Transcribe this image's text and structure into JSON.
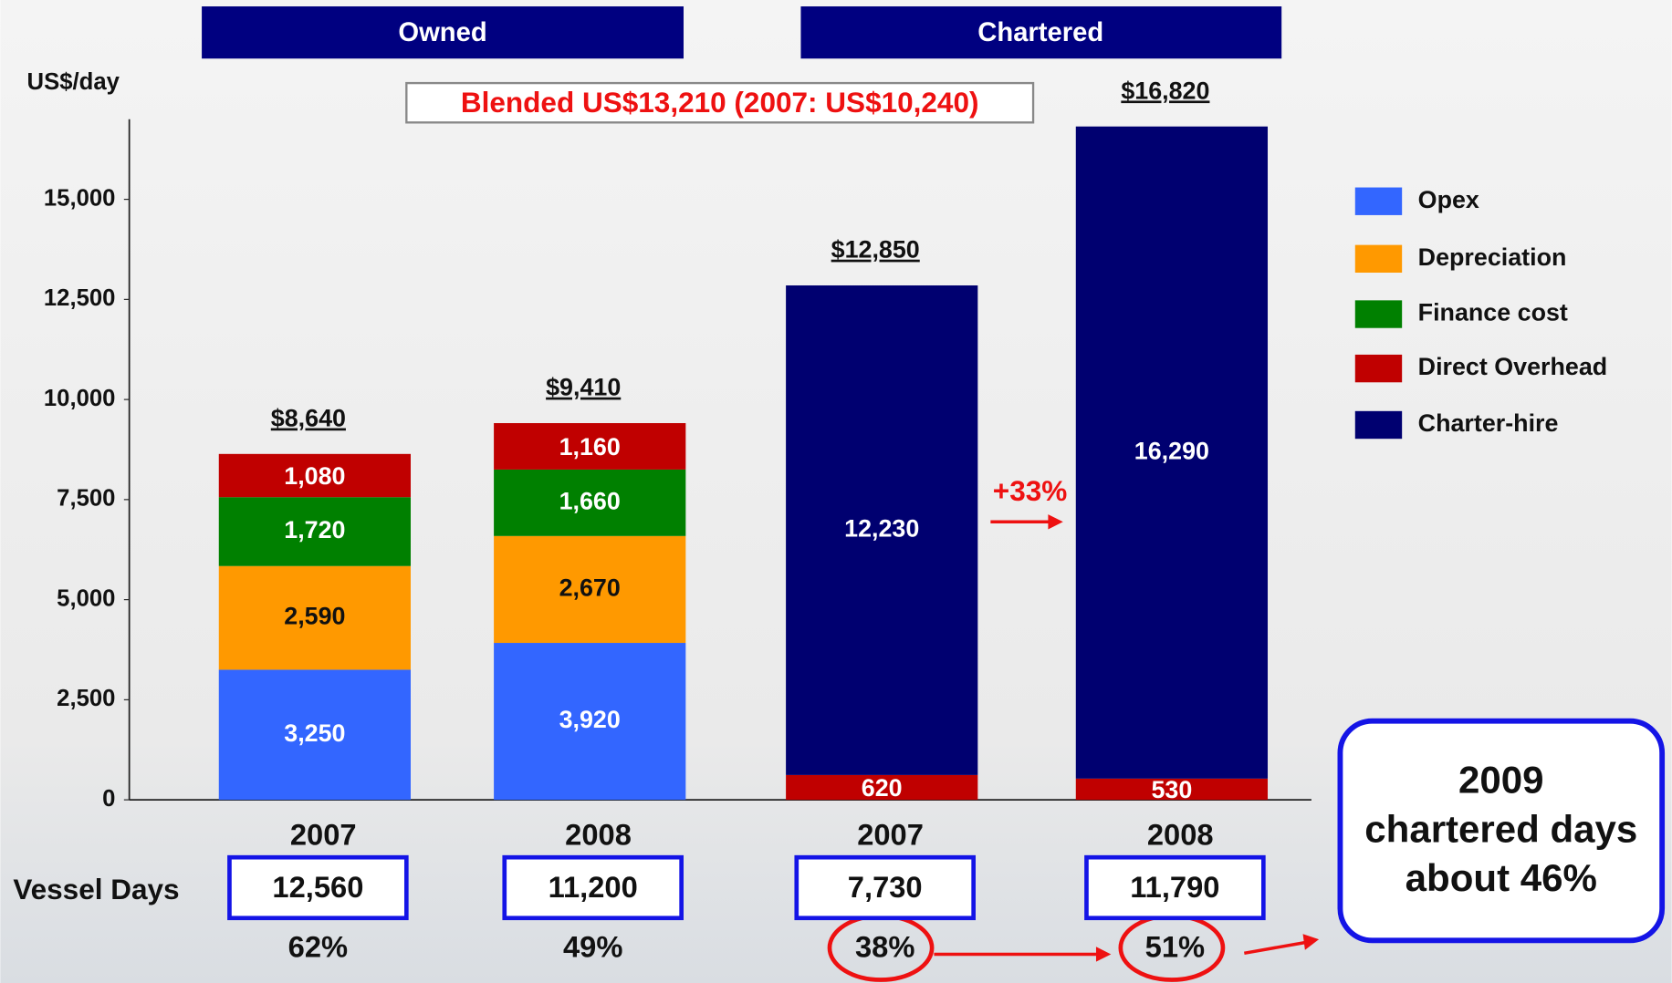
{
  "chart_data": {
    "type": "stacked_bar",
    "groups": [
      "Owned",
      "Chartered"
    ],
    "y_unit": "US$/day",
    "annotation": "Blended US$13,210 (2007: US$10,240)",
    "growth_label": "+33%",
    "categories": [
      "2007",
      "2008",
      "2007",
      "2008"
    ],
    "series": [
      {
        "name": "Opex",
        "color": "#3366ff",
        "label_color": "#ffffff",
        "values": [
          3250,
          3920,
          null,
          null
        ],
        "value_labels": [
          "3,250",
          "3,920",
          null,
          null
        ]
      },
      {
        "name": "Depreciation",
        "color": "#ff9900",
        "label_color": "#111111",
        "values": [
          2590,
          2670,
          null,
          null
        ],
        "value_labels": [
          "2,590",
          "2,670",
          null,
          null
        ]
      },
      {
        "name": "Finance cost",
        "color": "#008000",
        "label_color": "#ffffff",
        "values": [
          1720,
          1660,
          null,
          null
        ],
        "value_labels": [
          "1,720",
          "1,660",
          null,
          null
        ]
      },
      {
        "name": "Direct Overhead",
        "color": "#c00000",
        "label_color": "#ffffff",
        "values": [
          1080,
          1160,
          620,
          530
        ],
        "value_labels": [
          "1,080",
          "1,160",
          "620",
          "530"
        ]
      },
      {
        "name": "Charter-hire",
        "color": "#000070",
        "label_color": "#ffffff",
        "values": [
          null,
          null,
          12230,
          16290
        ],
        "value_labels": [
          null,
          null,
          "12,230",
          "16,290"
        ]
      }
    ],
    "totals": [
      8640,
      9410,
      12850,
      16820
    ],
    "total_labels": [
      "$8,640",
      "$9,410",
      "$12,850",
      "$16,820"
    ],
    "ylim": [
      0,
      17000
    ],
    "yticks": [
      0,
      {
        "value": 2500,
        "label": "2,500"
      },
      {
        "value": 5000,
        "label": "5,000"
      },
      {
        "value": 7500,
        "label": "7,500"
      },
      {
        "value": 10000,
        "label": "10,000"
      },
      {
        "value": 12500,
        "label": "12,500"
      },
      {
        "value": 15000,
        "label": "15,000"
      }
    ],
    "vessel_days": {
      "label": "Vessel Days",
      "values": [
        12560,
        11200,
        7730,
        11790
      ],
      "value_labels": [
        "12,560",
        "11,200",
        "7,730",
        "11,790"
      ]
    },
    "shares": {
      "values": [
        62,
        49,
        38,
        51
      ],
      "value_labels": [
        "62%",
        "49%",
        "38%",
        "51%"
      ]
    },
    "callout": [
      "2009",
      "chartered days",
      "about 46%"
    ],
    "legend": "right"
  }
}
